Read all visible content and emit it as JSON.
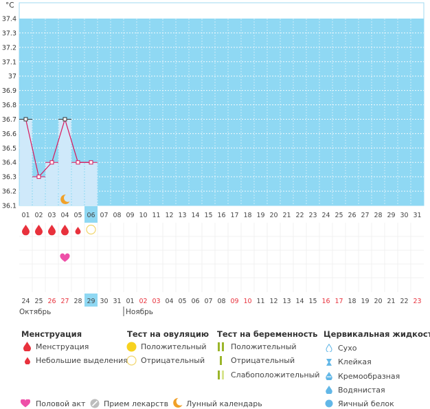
{
  "chart_data": {
    "type": "line",
    "ylabel": "°C",
    "ylim": [
      36.1,
      37.4
    ],
    "yticks": [
      "37.4",
      "37.3",
      "37.2",
      "37.1",
      "37",
      "36.9",
      "36.8",
      "36.7",
      "36.6",
      "36.5",
      "36.4",
      "36.3",
      "36.2",
      "36.1"
    ],
    "grid": true,
    "days": [
      "01",
      "02",
      "03",
      "04",
      "05",
      "06",
      "07",
      "08",
      "09",
      "10",
      "11",
      "12",
      "13",
      "14",
      "15",
      "16",
      "17",
      "18",
      "19",
      "20",
      "21",
      "22",
      "23",
      "24",
      "25",
      "26",
      "27",
      "28",
      "29",
      "30",
      "31"
    ],
    "highlight_day_index": 5,
    "series": [
      {
        "x": [
          "01",
          "02",
          "03",
          "04",
          "05",
          "06"
        ],
        "values": [
          36.7,
          36.3,
          36.4,
          36.7,
          36.4,
          36.4
        ]
      }
    ],
    "marker_colors": [
      "#333333",
      "#d9165a",
      "#d9165a",
      "#333333",
      "#d9165a",
      "#d9165a"
    ],
    "line_color": "#d9165a",
    "fill_color": "#cfe9fa",
    "background_color": "#8fd8f3",
    "moon_day_index": 3,
    "menstruation_heavy_days": [
      0,
      1,
      2,
      3
    ],
    "menstruation_light_days": [
      4
    ],
    "ovulation_negative_days": [
      5
    ],
    "intercourse_days": [
      3
    ],
    "bottom_dates": [
      "24",
      "25",
      "26",
      "27",
      "28",
      "29",
      "30",
      "31",
      "01",
      "02",
      "03",
      "04",
      "05",
      "06",
      "07",
      "08",
      "09",
      "10",
      "11",
      "12",
      "13",
      "14",
      "15",
      "16",
      "17",
      "18",
      "19",
      "20",
      "21",
      "22",
      "23"
    ],
    "bottom_red_indices": [
      2,
      3,
      9,
      10,
      16,
      17,
      23,
      24,
      30
    ],
    "bottom_highlight_index": 5,
    "month_left": "Октябрь",
    "month_right": "Ноябрь",
    "month_break_index": 8
  },
  "legend": {
    "menstruation": {
      "title": "Менструация",
      "items": [
        "Менструация",
        "Небольшие выделения"
      ]
    },
    "ovulation_test": {
      "title": "Тест на овуляцию",
      "items": [
        "Положительный",
        "Отрицательный"
      ]
    },
    "pregnancy_test": {
      "title": "Тест на беременность",
      "items": [
        "Положительный",
        "Отрицательный",
        "Слабоположительный"
      ]
    },
    "cervical": {
      "title": "Цервикальная жидкость",
      "items": [
        "Сухо",
        "Клейкая",
        "Кремообразная",
        "Водянистая",
        "Яичный белок"
      ]
    },
    "bottom": [
      "Половой акт",
      "Прием лекарств",
      "Лунный календарь"
    ]
  },
  "colors": {
    "drop": "#e8313c",
    "heart": "#ee4fa8",
    "ovulation_positive": "#f7d21f",
    "ovulation_negative_border": "#f1d56a",
    "pregnancy_positive": "#9bb52a",
    "pregnancy_faint": "#d7e48f",
    "cervical": "#62b7e7",
    "moon": "#f0a028",
    "pill": "#bdbdbd",
    "red_date": "#e8313c"
  }
}
